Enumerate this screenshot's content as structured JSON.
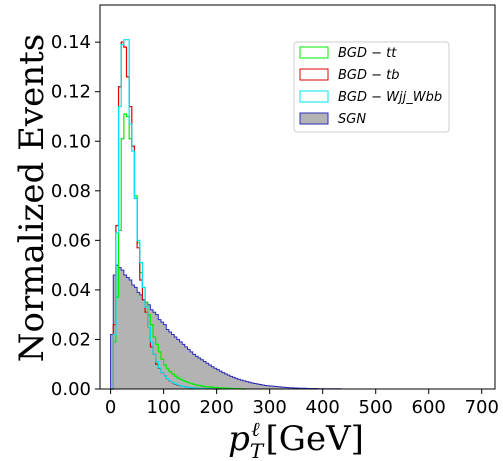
{
  "chart_data": {
    "type": "histogram",
    "xlabel": "p_T^ℓ [GeV]",
    "ylabel": "Normalized Events",
    "xlim": [
      -20,
      725
    ],
    "ylim": [
      0,
      0.155
    ],
    "xticks": [
      "0",
      "100",
      "200",
      "300",
      "400",
      "500",
      "600",
      "700"
    ],
    "yticks": [
      "0.00",
      "0.02",
      "0.04",
      "0.06",
      "0.08",
      "0.10",
      "0.12",
      "0.14"
    ],
    "bin_width": 5,
    "legend_position": "top-right",
    "grid": false,
    "series": [
      {
        "name": "BGD-tt",
        "style": "step",
        "color": "#00ee00",
        "x": [
          0,
          5,
          10,
          15,
          20,
          25,
          30,
          35,
          40,
          45,
          50,
          55,
          60,
          65,
          70,
          75,
          80,
          85,
          90,
          95,
          100,
          105,
          110,
          115,
          120,
          125,
          130,
          135,
          140,
          145,
          150,
          155,
          160,
          165,
          170,
          175,
          180,
          185,
          190,
          195,
          200,
          205,
          210,
          215,
          220,
          225,
          230,
          235,
          240,
          245,
          250
        ],
        "values": [
          0.0,
          0.019,
          0.037,
          0.064,
          0.101,
          0.111,
          0.11,
          0.101,
          0.098,
          0.078,
          0.059,
          0.047,
          0.041,
          0.035,
          0.03,
          0.026,
          0.021,
          0.018,
          0.015,
          0.012,
          0.0097,
          0.0082,
          0.007,
          0.006,
          0.0052,
          0.0045,
          0.0039,
          0.0034,
          0.003,
          0.0026,
          0.0022,
          0.0019,
          0.0016,
          0.0014,
          0.0012,
          0.001,
          0.0009,
          0.0008,
          0.0007,
          0.0006,
          0.0005,
          0.0004,
          0.0004,
          0.0003,
          0.0003,
          0.0002,
          0.0002,
          0.0002,
          0.0001,
          0.0001,
          0.0
        ]
      },
      {
        "name": "BGD-tb",
        "style": "step",
        "color": "#dd0000",
        "x": [
          0,
          5,
          10,
          15,
          20,
          25,
          30,
          35,
          40,
          45,
          50,
          55,
          60,
          65,
          70,
          75,
          80,
          85,
          90,
          95,
          100,
          105,
          110,
          115,
          120,
          125,
          130,
          135,
          140,
          145,
          150,
          155,
          160,
          165,
          170,
          175,
          180,
          185,
          190,
          195,
          200
        ],
        "values": [
          0.0,
          0.026,
          0.066,
          0.122,
          0.14,
          0.138,
          0.126,
          0.114,
          0.098,
          0.077,
          0.057,
          0.044,
          0.036,
          0.031,
          0.025,
          0.017,
          0.014,
          0.01,
          0.0083,
          0.0066,
          0.0053,
          0.0041,
          0.0032,
          0.0025,
          0.0019,
          0.0015,
          0.0012,
          0.001,
          0.0008,
          0.0006,
          0.0005,
          0.0004,
          0.0003,
          0.0003,
          0.0002,
          0.0002,
          0.0001,
          0.0001,
          0.0001,
          0.0,
          0.0
        ]
      },
      {
        "name": "BGD-Wjj_Wbb",
        "style": "step",
        "color": "#00e5ee",
        "x": [
          0,
          5,
          10,
          15,
          20,
          25,
          30,
          35,
          40,
          45,
          50,
          55,
          60,
          65,
          70,
          75,
          80,
          85,
          90,
          95,
          100,
          105,
          110,
          115,
          120,
          125,
          130,
          135,
          140,
          145,
          150,
          155,
          160,
          165,
          170,
          175,
          180,
          185,
          190,
          195,
          200
        ],
        "values": [
          0.0,
          0.022,
          0.063,
          0.114,
          0.139,
          0.141,
          0.141,
          0.107,
          0.096,
          0.077,
          0.06,
          0.051,
          0.041,
          0.033,
          0.025,
          0.019,
          0.014,
          0.011,
          0.0085,
          0.0067,
          0.0053,
          0.0042,
          0.0033,
          0.0026,
          0.0021,
          0.0017,
          0.0013,
          0.001,
          0.0008,
          0.0006,
          0.0005,
          0.0004,
          0.0003,
          0.0003,
          0.0002,
          0.0002,
          0.0001,
          0.0001,
          0.0001,
          0.0,
          0.0
        ]
      },
      {
        "name": "SGN",
        "style": "filled",
        "color": "#b3b3b3",
        "edgecolor": "#2c2cb8",
        "x": [
          0,
          5,
          10,
          15,
          20,
          25,
          30,
          35,
          40,
          45,
          50,
          55,
          60,
          65,
          70,
          75,
          80,
          85,
          90,
          95,
          100,
          105,
          110,
          115,
          120,
          125,
          130,
          135,
          140,
          145,
          150,
          155,
          160,
          165,
          170,
          175,
          180,
          185,
          190,
          195,
          200,
          205,
          210,
          215,
          220,
          225,
          230,
          235,
          240,
          245,
          250,
          255,
          260,
          265,
          270,
          275,
          280,
          285,
          290,
          295,
          300,
          305,
          310,
          315,
          320,
          325,
          330,
          335,
          340,
          345,
          350,
          355,
          360,
          365,
          370,
          375,
          380,
          385,
          390,
          395,
          400,
          405,
          410,
          415,
          420,
          425,
          430,
          435,
          440,
          445,
          450,
          455,
          460,
          465,
          470,
          475,
          480,
          485,
          490,
          495,
          500
        ],
        "values": [
          0.022,
          0.046,
          0.05,
          0.049,
          0.048,
          0.046,
          0.045,
          0.044,
          0.042,
          0.041,
          0.039,
          0.038,
          0.036,
          0.035,
          0.034,
          0.032,
          0.031,
          0.03,
          0.028,
          0.027,
          0.026,
          0.024,
          0.023,
          0.022,
          0.021,
          0.02,
          0.019,
          0.018,
          0.017,
          0.016,
          0.015,
          0.014,
          0.0132,
          0.0125,
          0.0118,
          0.0111,
          0.0104,
          0.0097,
          0.009,
          0.0084,
          0.0078,
          0.0072,
          0.0066,
          0.0061,
          0.0056,
          0.0051,
          0.0047,
          0.0043,
          0.0039,
          0.0036,
          0.0033,
          0.003,
          0.0027,
          0.0024,
          0.0022,
          0.002,
          0.0018,
          0.0016,
          0.0014,
          0.0013,
          0.0012,
          0.0011,
          0.001,
          0.0009,
          0.0008,
          0.0007,
          0.0006,
          0.0005,
          0.0005,
          0.0004,
          0.0004,
          0.0003,
          0.0003,
          0.0003,
          0.0002,
          0.0002,
          0.0002,
          0.0002,
          0.0001,
          0.0001,
          0.0001,
          0.0001,
          0.0001,
          0.0001,
          0.0001,
          0.0001,
          0.0001,
          0.0,
          0.0,
          0.0,
          0.0,
          0.0,
          0.0,
          0.0,
          0.0,
          0.0,
          0.0,
          0.0,
          0.0,
          0.0,
          0.0
        ]
      }
    ]
  }
}
